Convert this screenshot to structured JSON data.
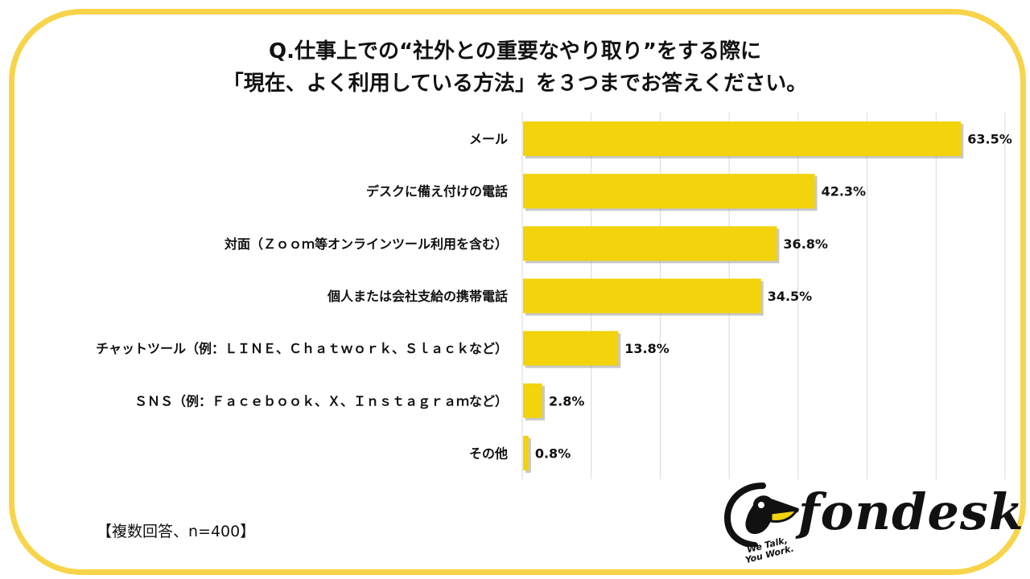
{
  "title": {
    "line1": "Q.仕事上での“社外との重要なやり取り”をする際に",
    "line2": "「現在、よく利用している方法」を３つまでお答えください。"
  },
  "note": "【複数回答、n=400】",
  "logo": {
    "wordmark": "fondesk",
    "tagline_1": "We Talk,",
    "tagline_2": "You Work.",
    "icon": "pelican-icon"
  },
  "colors": {
    "bar": "#f2d30c",
    "frame": "#f7d44a",
    "grid": "#d9d9d9"
  },
  "chart_data": {
    "type": "bar",
    "orientation": "horizontal",
    "categories": [
      "メール",
      "デスクに備え付けの電話",
      "対面（Ｚｏｏｍ等オンラインツール利用を含む）",
      "個人または会社支給の携帯電話",
      "チャットツール（例：ＬＩＮＥ、Ｃｈａｔｗｏｒｋ、Ｓｌａｃｋなど）",
      "ＳＮＳ（例：Ｆａｃｅｂｏｏｋ、Ｘ、Ｉｎｓｔａｇｒａｍなど）",
      "その他"
    ],
    "values": [
      63.5,
      42.3,
      36.8,
      34.5,
      13.8,
      2.8,
      0.8
    ],
    "data_labels": [
      "63.5%",
      "42.3%",
      "36.8%",
      "34.5%",
      "13.8%",
      "2.8%",
      "0.8%"
    ],
    "xlim": [
      0,
      70
    ],
    "grid": true,
    "legend": "none"
  }
}
